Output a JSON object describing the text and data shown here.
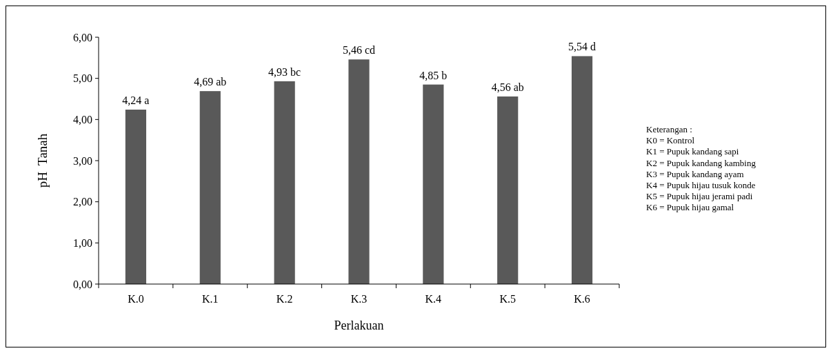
{
  "chart_data": {
    "type": "bar",
    "xlabel": "Perlakuan",
    "ylabel": "pH  Tanah",
    "categories": [
      "K.0",
      "K.1",
      "K.2",
      "K.3",
      "K.4",
      "K.5",
      "K.6"
    ],
    "values": [
      4.24,
      4.69,
      4.93,
      5.46,
      4.85,
      4.56,
      5.54
    ],
    "value_labels": [
      "4,24 a",
      "4,69 ab",
      "4,93 bc",
      "5,46 cd",
      "4,85 b",
      "4,56 ab",
      "5,54 d"
    ],
    "color": "#595959",
    "ylim": [
      0,
      6
    ],
    "yticks": [
      {
        "value": 0,
        "label": "0,00"
      },
      {
        "value": 1,
        "label": "1,00"
      },
      {
        "value": 2,
        "label": "2,00"
      },
      {
        "value": 3,
        "label": "3,00"
      },
      {
        "value": 4,
        "label": "4,00"
      },
      {
        "value": 5,
        "label": "5,00"
      },
      {
        "value": 6,
        "label": "6,00"
      }
    ],
    "grid": false,
    "annotations": [
      "Keterangan :",
      "K0 = Kontrol",
      "K1 = Pupuk kandang sapi",
      "K2 = Pupuk kandang kambing",
      "K3 = Pupuk kandang ayam",
      "K4 = Pupuk hijau tusuk konde",
      "K5 = Pupuk hijau jerami padi",
      "K6 = Pupuk hijau gamal"
    ]
  }
}
